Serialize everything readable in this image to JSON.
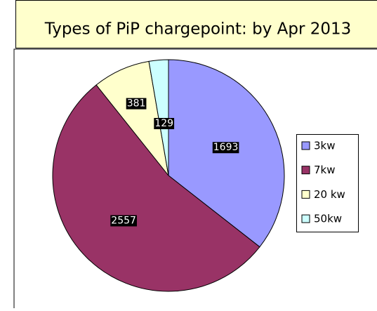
{
  "chart_data": {
    "type": "pie",
    "title": "Types of PiP chargepoint: by Apr 2013",
    "categories": [
      "3kw",
      "7kw",
      "20 kw",
      "50kw"
    ],
    "values": [
      1693,
      2557,
      381,
      129
    ],
    "colors": [
      "#9999ff",
      "#993366",
      "#ffffcc",
      "#ccffff"
    ],
    "legend": "right"
  }
}
